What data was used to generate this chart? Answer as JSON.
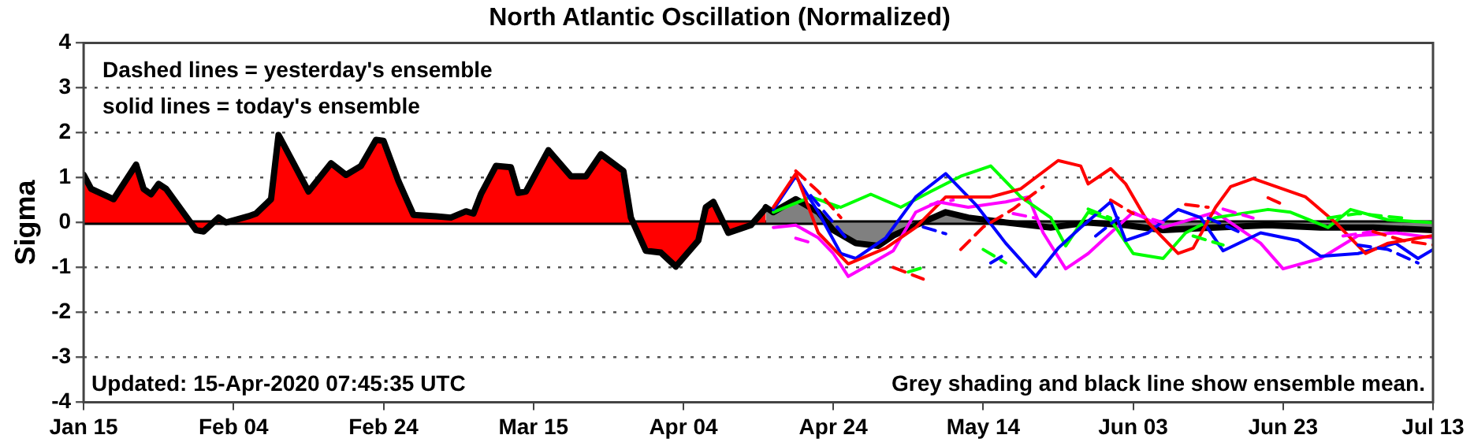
{
  "chart_data": {
    "type": "line",
    "title": "North Atlantic Oscillation (Normalized)",
    "ylabel": "Sigma",
    "annotations": [
      "Dashed lines = yesterday's ensemble",
      "solid lines = today's ensemble",
      "Updated: 15-Apr-2020 07:45:35 UTC",
      "Grey shading and black line show ensemble mean."
    ],
    "xlim": [
      "2020-01-15",
      "2020-07-13"
    ],
    "xticks": [
      {
        "value": "2020-01-15",
        "label": "Jan 15"
      },
      {
        "value": "2020-02-04",
        "label": "Feb 04"
      },
      {
        "value": "2020-02-24",
        "label": "Feb 24"
      },
      {
        "value": "2020-03-15",
        "label": "Mar 15"
      },
      {
        "value": "2020-04-04",
        "label": "Apr 04"
      },
      {
        "value": "2020-04-24",
        "label": "Apr 24"
      },
      {
        "value": "2020-05-14",
        "label": "May 14"
      },
      {
        "value": "2020-06-03",
        "label": "Jun 03"
      },
      {
        "value": "2020-06-23",
        "label": "Jun 23"
      },
      {
        "value": "2020-07-13",
        "label": "Jul 13"
      }
    ],
    "ylim": [
      -4,
      4
    ],
    "yticks": [
      -4,
      -3,
      -2,
      -1,
      0,
      1,
      2,
      3,
      4
    ],
    "grid": "y",
    "legend": false,
    "ref_lines": [
      {
        "axis": "y",
        "value": 0,
        "color": "#000000"
      }
    ],
    "series": [
      {
        "type": "area",
        "color": "#ff0000",
        "x": [
          "2020-01-15",
          "2020-01-16",
          "2020-01-19",
          "2020-01-22",
          "2020-01-23",
          "2020-01-24",
          "2020-01-25",
          "2020-01-26",
          "2020-01-30",
          "2020-01-31",
          "2020-02-02",
          "2020-02-03",
          "2020-02-06",
          "2020-02-07",
          "2020-02-09",
          "2020-02-10",
          "2020-02-12",
          "2020-02-14",
          "2020-02-17",
          "2020-02-19",
          "2020-02-21",
          "2020-02-23",
          "2020-02-24",
          "2020-02-26",
          "2020-02-28",
          "2020-03-02",
          "2020-03-04",
          "2020-03-06",
          "2020-03-07",
          "2020-03-08",
          "2020-03-10",
          "2020-03-12",
          "2020-03-13",
          "2020-03-14",
          "2020-03-17",
          "2020-03-20",
          "2020-03-22",
          "2020-03-24",
          "2020-03-27",
          "2020-03-28",
          "2020-03-30",
          "2020-04-01",
          "2020-04-03",
          "2020-04-06",
          "2020-04-07",
          "2020-04-08",
          "2020-04-10",
          "2020-04-13",
          "2020-04-15"
        ],
        "values": [
          1.06,
          0.75,
          0.52,
          1.29,
          0.75,
          0.63,
          0.86,
          0.75,
          -0.17,
          -0.2,
          0.11,
          0,
          0.14,
          0.2,
          0.52,
          1.95,
          1.32,
          0.69,
          1.32,
          1.06,
          1.26,
          1.84,
          1.82,
          0.92,
          0.17,
          0.14,
          0.11,
          0.25,
          0.2,
          0.63,
          1.26,
          1.23,
          0.66,
          0.69,
          1.61,
          1.03,
          1.03,
          1.52,
          1.15,
          0.11,
          -0.63,
          -0.67,
          -0.98,
          -0.4,
          0.34,
          0.46,
          -0.23,
          -0.06,
          0.32
        ]
      },
      {
        "type": "area",
        "color": "#808080",
        "x": [
          "2020-04-15",
          "2020-04-16",
          "2020-04-19",
          "2020-04-22",
          "2020-04-24",
          "2020-04-27",
          "2020-04-30",
          "2020-05-02",
          "2020-05-05",
          "2020-05-09",
          "2020-05-12",
          "2020-05-17",
          "2020-05-23",
          "2020-05-28",
          "2020-06-02",
          "2020-06-07",
          "2020-06-14",
          "2020-06-21",
          "2020-06-28",
          "2020-07-05",
          "2020-07-13"
        ],
        "values": [
          0.34,
          0.23,
          0.52,
          0.23,
          -0.17,
          -0.46,
          -0.52,
          -0.29,
          -0.06,
          0.23,
          0.11,
          0,
          -0.11,
          0,
          -0.06,
          -0.17,
          -0.11,
          -0.06,
          -0.11,
          -0.11,
          -0.17
        ]
      },
      {
        "color": "#ff0000",
        "line_style": "solid",
        "x": [
          "2020-04-16",
          "2020-04-19",
          "2020-04-22",
          "2020-04-26",
          "2020-05-01",
          "2020-05-05",
          "2020-05-09",
          "2020-05-15",
          "2020-05-19",
          "2020-05-24",
          "2020-05-27",
          "2020-05-28",
          "2020-05-31",
          "2020-06-02",
          "2020-06-05",
          "2020-06-09",
          "2020-06-11",
          "2020-06-14",
          "2020-06-16",
          "2020-06-19",
          "2020-06-26",
          "2020-06-30",
          "2020-07-04",
          "2020-07-07",
          "2020-07-13"
        ],
        "values": [
          0.34,
          1.09,
          -0.23,
          -0.92,
          -0.57,
          -0.11,
          0.57,
          0.57,
          0.75,
          1.38,
          1.26,
          0.86,
          1.2,
          0.86,
          0,
          -0.69,
          -0.57,
          0.34,
          0.8,
          0.98,
          0.57,
          0,
          -0.69,
          -0.46,
          -0.29
        ]
      },
      {
        "color": "#0000ff",
        "line_style": "solid",
        "x": [
          "2020-04-16",
          "2020-04-19",
          "2020-04-22",
          "2020-04-25",
          "2020-04-27",
          "2020-05-01",
          "2020-05-05",
          "2020-05-09",
          "2020-05-13",
          "2020-05-17",
          "2020-05-21",
          "2020-05-24",
          "2020-05-27",
          "2020-05-31",
          "2020-06-02",
          "2020-06-05",
          "2020-06-09",
          "2020-06-12",
          "2020-06-15",
          "2020-06-20",
          "2020-06-25",
          "2020-06-28",
          "2020-07-03",
          "2020-07-08",
          "2020-07-11",
          "2020-07-13"
        ],
        "values": [
          0.29,
          1.03,
          0.23,
          -0.69,
          -0.8,
          -0.34,
          0.57,
          1.09,
          0.4,
          -0.46,
          -1.2,
          -0.57,
          -0.11,
          0.46,
          -0.4,
          -0.23,
          0.29,
          0.11,
          -0.63,
          -0.23,
          -0.4,
          -0.75,
          -0.69,
          -0.46,
          -0.8,
          -0.6
        ]
      },
      {
        "color": "#00ff00",
        "line_style": "solid",
        "x": [
          "2020-04-16",
          "2020-04-21",
          "2020-04-25",
          "2020-04-29",
          "2020-05-03",
          "2020-05-07",
          "2020-05-11",
          "2020-05-15",
          "2020-05-19",
          "2020-05-23",
          "2020-05-25",
          "2020-05-28",
          "2020-05-31",
          "2020-06-03",
          "2020-06-07",
          "2020-06-10",
          "2020-06-14",
          "2020-06-21",
          "2020-06-24",
          "2020-06-29",
          "2020-07-02",
          "2020-07-07",
          "2020-07-13"
        ],
        "values": [
          0.23,
          0.57,
          0.34,
          0.63,
          0.34,
          0.69,
          1.03,
          1.26,
          0.57,
          0.11,
          -0.52,
          0.23,
          0.06,
          -0.69,
          -0.8,
          -0.23,
          0.11,
          0.29,
          0.23,
          -0.11,
          0.29,
          0.06,
          0
        ]
      },
      {
        "color": "#ff00ff",
        "line_style": "solid",
        "x": [
          "2020-04-16",
          "2020-04-19",
          "2020-04-22",
          "2020-04-24",
          "2020-04-26",
          "2020-04-29",
          "2020-05-02",
          "2020-05-05",
          "2020-05-08",
          "2020-05-12",
          "2020-05-17",
          "2020-05-20",
          "2020-05-22",
          "2020-05-25",
          "2020-05-28",
          "2020-05-31",
          "2020-06-03",
          "2020-06-07",
          "2020-06-14",
          "2020-06-20",
          "2020-06-23",
          "2020-06-28",
          "2020-07-03",
          "2020-07-08",
          "2020-07-13"
        ],
        "values": [
          -0.11,
          -0.06,
          -0.34,
          -0.69,
          -1.2,
          -0.92,
          -0.63,
          0.23,
          0.46,
          0.34,
          0.46,
          0.57,
          -0.23,
          -1.03,
          -0.69,
          -0.23,
          0.23,
          -0.11,
          0.23,
          -0.46,
          -1.03,
          -0.8,
          -0.29,
          -0.23,
          -0.34
        ]
      },
      {
        "color": "#ff0000",
        "line_style": "dashed",
        "x": [
          "2020-04-19",
          "2020-04-22",
          "2020-04-25",
          "2020-04-28",
          "2020-05-02",
          "2020-05-06",
          "2020-05-08",
          "2020-05-11",
          "2020-05-14",
          "2020-05-18",
          "2020-05-22",
          "2020-05-25",
          "2020-05-31",
          "2020-06-03",
          "2020-06-06",
          "2020-06-10",
          "2020-06-13",
          "2020-06-16",
          "2020-06-21",
          "2020-06-23",
          "2020-06-26",
          "2020-07-05",
          "2020-07-09",
          "2020-07-13"
        ],
        "values": [
          1.15,
          0.69,
          0.11,
          null,
          -1.0,
          -1.26,
          null,
          -0.6,
          -0.1,
          0.3,
          0.8,
          null,
          0.5,
          0.2,
          null,
          0.4,
          0.34,
          null,
          0.55,
          0.4,
          null,
          -0.2,
          -0.4,
          -0.5
        ]
      },
      {
        "color": "#0000ff",
        "line_style": "dashed",
        "x": [
          "2020-04-21",
          "2020-04-24",
          "2020-04-26",
          "2020-04-28",
          "2020-05-06",
          "2020-05-09",
          "2020-05-12",
          "2020-05-15",
          "2020-05-17",
          "2020-05-20",
          "2020-05-29",
          "2020-06-01",
          "2020-06-04",
          "2020-06-13",
          "2020-06-17",
          "2020-06-21",
          "2020-07-03",
          "2020-07-07",
          "2020-07-11"
        ],
        "values": [
          0.6,
          0,
          -0.4,
          null,
          -0.1,
          -0.25,
          null,
          -0.9,
          -0.7,
          null,
          -0.3,
          0.1,
          null,
          0.1,
          -0.2,
          null,
          -0.5,
          -0.6,
          -0.9
        ]
      },
      {
        "color": "#00ff00",
        "line_style": "dashed",
        "x": [
          "2020-04-23",
          "2020-04-25",
          "2020-04-27",
          "2020-05-04",
          "2020-05-06",
          "2020-05-08",
          "2020-05-14",
          "2020-05-17",
          "2020-05-20",
          "2020-05-28",
          "2020-05-31",
          "2020-06-03",
          "2020-06-11",
          "2020-06-15",
          "2020-06-19",
          "2020-06-29",
          "2020-07-03",
          "2020-07-09"
        ],
        "values": [
          0.45,
          0.3,
          null,
          -1.1,
          -1.0,
          null,
          -0.6,
          -0.9,
          null,
          0.3,
          0.1,
          null,
          -0.3,
          -0.5,
          null,
          0.1,
          0.2,
          0.1
        ]
      },
      {
        "color": "#ff00ff",
        "line_style": "dashed",
        "x": [
          "2020-04-19",
          "2020-04-21",
          "2020-04-29",
          "2020-05-07",
          "2020-05-10",
          "2020-05-13",
          "2020-05-18",
          "2020-05-21",
          "2020-05-24",
          "2020-06-03",
          "2020-06-07",
          "2020-06-11",
          "2020-06-15",
          "2020-06-19",
          "2020-06-23",
          "2020-07-01",
          "2020-07-05"
        ],
        "values": [
          -0.35,
          -0.45,
          null,
          0.4,
          0.5,
          null,
          0.2,
          0.1,
          null,
          0.2,
          0,
          null,
          0.3,
          0.1,
          null,
          -0.3,
          -0.2
        ]
      }
    ]
  }
}
